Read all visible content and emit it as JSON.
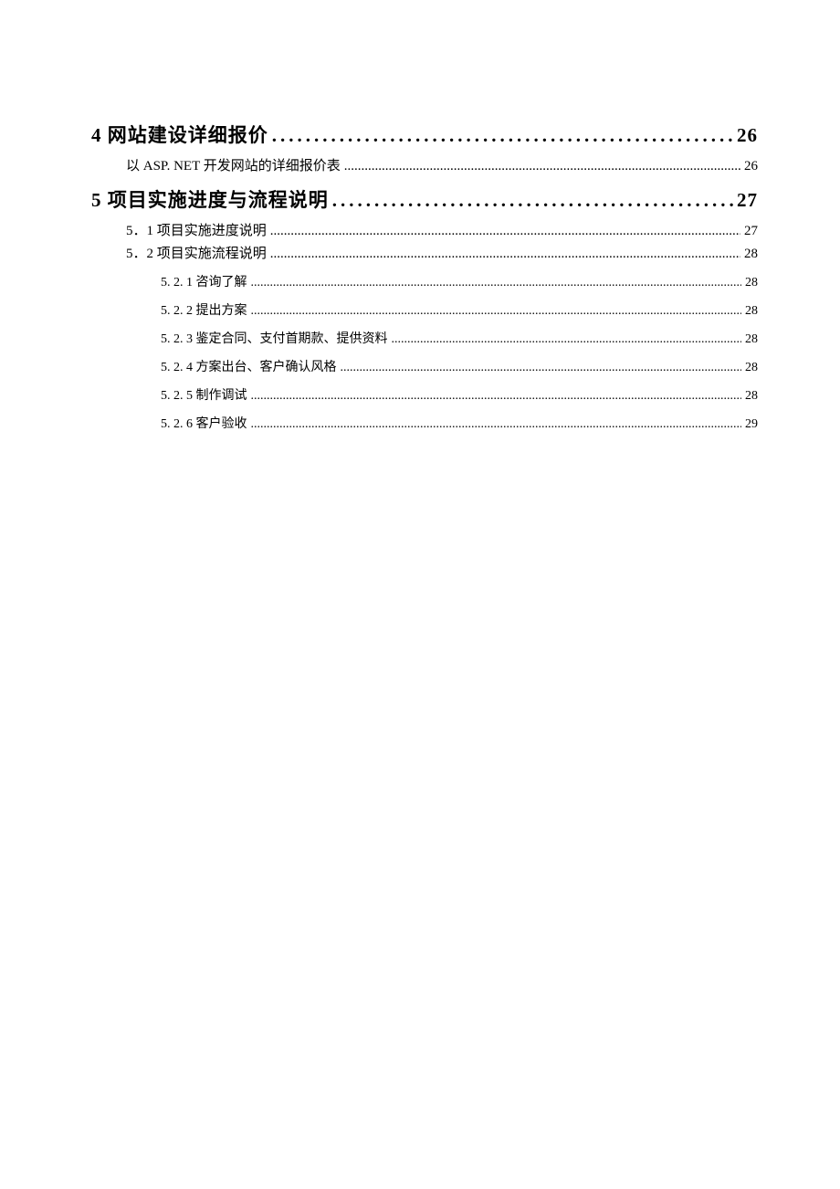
{
  "toc": {
    "sections": [
      {
        "level": "level1",
        "label": "4 网站建设详细报价",
        "page": "26"
      },
      {
        "level": "level2",
        "label": "以 ASP. NET 开发网站的详细报价表",
        "page": "26"
      },
      {
        "level": "level1",
        "label": "5 项目实施进度与流程说明",
        "page": "27"
      },
      {
        "level": "level2b",
        "label": "5．1 项目实施进度说明",
        "page": "27"
      },
      {
        "level": "level2b",
        "label": "5．2 项目实施流程说明",
        "page": "28"
      },
      {
        "level": "level3",
        "label": "5. 2. 1 咨询了解",
        "page": "28"
      },
      {
        "level": "level3",
        "label": "5. 2. 2 提出方案",
        "page": "28"
      },
      {
        "level": "level3",
        "label": "5. 2. 3  鉴定合同、支付首期款、提供资料",
        "page": "28"
      },
      {
        "level": "level3",
        "label": "5. 2. 4  方案出台、客户确认风格",
        "page": "28"
      },
      {
        "level": "level3",
        "label": "5. 2. 5 制作调试",
        "page": "28"
      },
      {
        "level": "level3",
        "label": "5. 2. 6 客户验收",
        "page": "29"
      }
    ]
  },
  "colors": {
    "text": "#000000",
    "background": "#ffffff"
  },
  "typography": {
    "font_family": "SimSun",
    "level1_fontsize": 21,
    "level2_fontsize": 15,
    "level3_fontsize": 14
  }
}
